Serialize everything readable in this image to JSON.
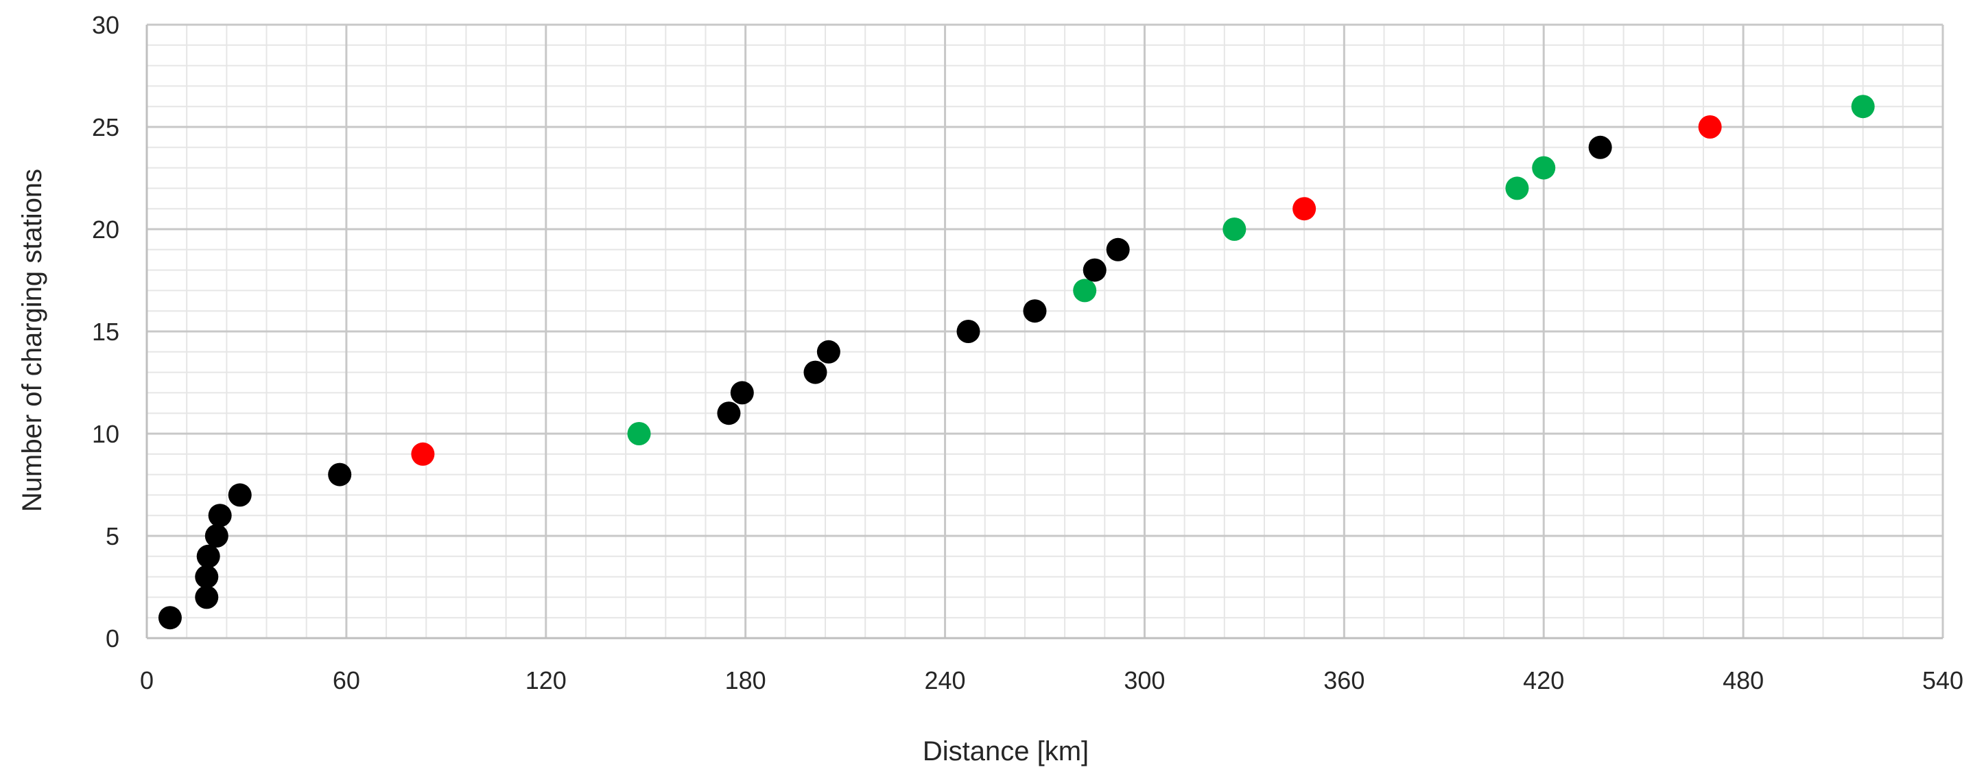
{
  "chart_data": {
    "type": "scatter",
    "xlabel": "Distance [km]",
    "ylabel": "Number of charging stations",
    "xlim": [
      0,
      540
    ],
    "ylim": [
      0,
      30
    ],
    "x_ticks": [
      0,
      60,
      120,
      180,
      240,
      300,
      360,
      420,
      480,
      540
    ],
    "y_ticks": [
      0,
      5,
      10,
      15,
      20,
      25,
      30
    ],
    "x_tick_labels": [
      "0",
      "60",
      "120",
      "180",
      "240",
      "300",
      "360",
      "420",
      "480",
      "540"
    ],
    "y_tick_labels": [
      "0",
      "5",
      "10",
      "15",
      "20",
      "25",
      "30"
    ],
    "grid": true,
    "minor_grid": true,
    "legend": "none",
    "colors": {
      "black": "#000000",
      "red": "#ff0000",
      "green": "#00b050"
    },
    "points": [
      {
        "x": 7,
        "y": 1,
        "color": "black"
      },
      {
        "x": 18,
        "y": 2,
        "color": "black"
      },
      {
        "x": 18,
        "y": 3,
        "color": "black"
      },
      {
        "x": 18.5,
        "y": 4,
        "color": "black"
      },
      {
        "x": 21,
        "y": 5,
        "color": "black"
      },
      {
        "x": 22,
        "y": 6,
        "color": "black"
      },
      {
        "x": 28,
        "y": 7,
        "color": "black"
      },
      {
        "x": 58,
        "y": 8,
        "color": "black"
      },
      {
        "x": 83,
        "y": 9,
        "color": "red"
      },
      {
        "x": 148,
        "y": 10,
        "color": "green"
      },
      {
        "x": 175,
        "y": 11,
        "color": "black"
      },
      {
        "x": 179,
        "y": 12,
        "color": "black"
      },
      {
        "x": 201,
        "y": 13,
        "color": "black"
      },
      {
        "x": 205,
        "y": 14,
        "color": "black"
      },
      {
        "x": 247,
        "y": 15,
        "color": "black"
      },
      {
        "x": 267,
        "y": 16,
        "color": "black"
      },
      {
        "x": 282,
        "y": 17,
        "color": "green"
      },
      {
        "x": 285,
        "y": 18,
        "color": "black"
      },
      {
        "x": 292,
        "y": 19,
        "color": "black"
      },
      {
        "x": 327,
        "y": 20,
        "color": "green"
      },
      {
        "x": 348,
        "y": 21,
        "color": "red"
      },
      {
        "x": 412,
        "y": 22,
        "color": "green"
      },
      {
        "x": 420,
        "y": 23,
        "color": "green"
      },
      {
        "x": 437,
        "y": 24,
        "color": "black"
      },
      {
        "x": 470,
        "y": 25,
        "color": "red"
      },
      {
        "x": 516,
        "y": 26,
        "color": "green"
      }
    ]
  }
}
